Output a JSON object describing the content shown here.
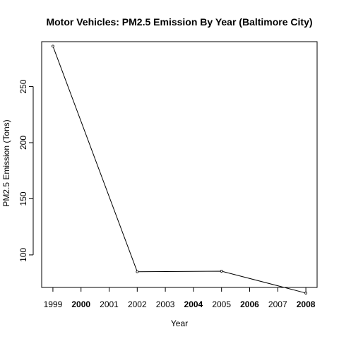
{
  "chart_data": {
    "type": "line",
    "title": "Motor Vehicles: PM2.5 Emission By Year (Baltimore City)",
    "xlabel": "Year",
    "ylabel": "PM2.5 Emission (Tons)",
    "x_ticks": [
      "1999",
      "2000",
      "2001",
      "2002",
      "2003",
      "2004",
      "2005",
      "2006",
      "2007",
      "2008"
    ],
    "x_ticks_bold": [
      "2000",
      "2004",
      "2006",
      "2008"
    ],
    "y_ticks": [
      100,
      150,
      200,
      250
    ],
    "xlim": [
      1998.6,
      2008.4
    ],
    "ylim": [
      71,
      290
    ],
    "grid": false,
    "series": [
      {
        "x": [
          1999,
          2002,
          2005,
          2008
        ],
        "y": [
          286,
          85,
          85.5,
          66
        ],
        "color": "#000000",
        "marker": "open-circle"
      }
    ]
  }
}
